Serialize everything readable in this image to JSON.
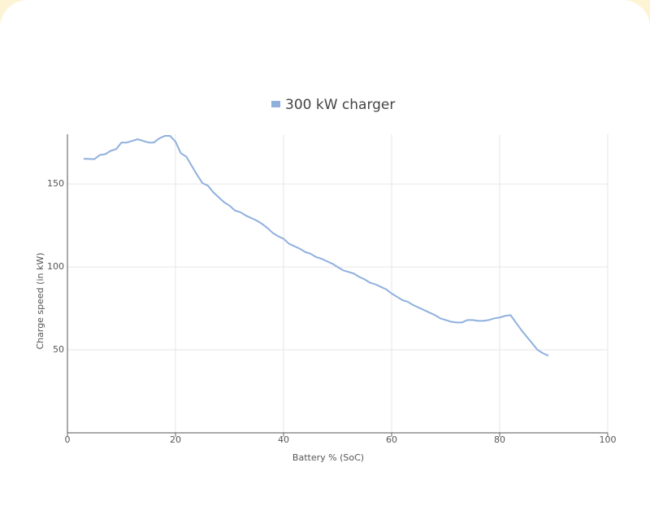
{
  "chart_data": {
    "type": "line",
    "x_label": "Battery % (SoC)",
    "y_label": "Charge speed (in kW)",
    "x": [
      3,
      5,
      6,
      7,
      8,
      9,
      10,
      11,
      12,
      13,
      14,
      15,
      16,
      17,
      18,
      19,
      20,
      21,
      22,
      23,
      24,
      25,
      26,
      27,
      28,
      29,
      30,
      31,
      32,
      33,
      34,
      35,
      36,
      37,
      38,
      39,
      40,
      41,
      42,
      43,
      44,
      45,
      46,
      47,
      48,
      49,
      50,
      51,
      52,
      53,
      54,
      55,
      56,
      57,
      58,
      59,
      60,
      61,
      62,
      63,
      64,
      65,
      66,
      67,
      68,
      69,
      70,
      71,
      72,
      73,
      74,
      75,
      76,
      77,
      78,
      79,
      80,
      81,
      82,
      83,
      84,
      85,
      86,
      87,
      88,
      89
    ],
    "series": [
      {
        "name": "300 kW charger",
        "color": "#8fb0dd",
        "values": [
          165.2,
          165,
          167.5,
          168,
          170,
          171,
          175,
          175,
          176,
          177,
          176,
          175,
          175,
          177.5,
          179,
          179,
          175.5,
          168.5,
          166.5,
          161,
          155.5,
          150.5,
          149,
          145,
          142,
          139,
          137,
          134,
          133,
          131,
          129.5,
          128,
          126,
          123.5,
          120.5,
          118.5,
          117,
          114,
          112.5,
          111,
          109,
          108,
          106,
          105,
          103.5,
          102,
          100,
          98,
          97,
          96,
          94,
          92.5,
          90.5,
          89.5,
          88,
          86.5,
          84,
          82,
          80,
          79,
          77,
          75.5,
          74,
          72.5,
          71,
          69,
          68,
          67,
          66.5,
          66.5,
          68,
          68,
          67.5,
          67.5,
          68,
          69,
          69.5,
          70.5,
          71,
          66.5,
          62,
          58,
          54,
          50,
          48,
          46.5
        ]
      }
    ],
    "xlim": [
      0,
      100
    ],
    "xticks": [
      0,
      20,
      40,
      60,
      80,
      100
    ],
    "ylim": [
      0,
      180
    ],
    "yticks": [
      50,
      100,
      150
    ],
    "grid": true,
    "legend": "top"
  }
}
